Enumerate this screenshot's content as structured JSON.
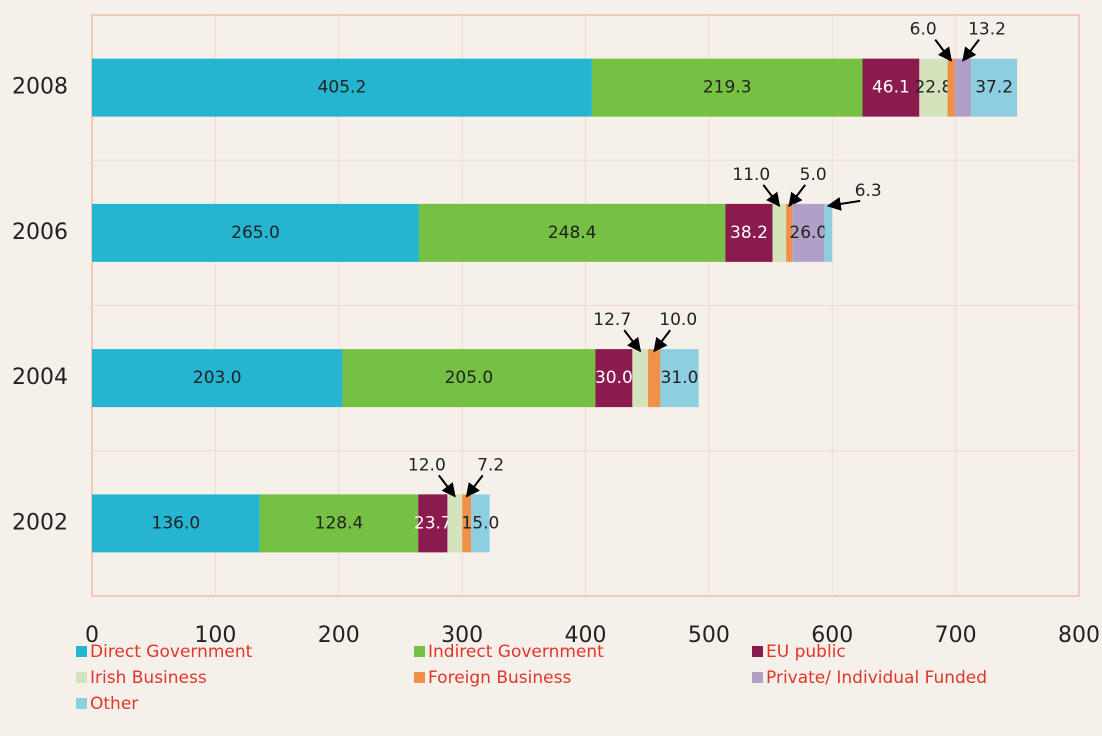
{
  "chart_data": {
    "type": "stacked_bar_horizontal",
    "categories": [
      "2008",
      "2006",
      "2004",
      "2002"
    ],
    "series": [
      {
        "name": "Direct Government",
        "color": "#26b5d0",
        "values": [
          405.2,
          265.0,
          203.0,
          136.0
        ],
        "value_labels": [
          "405.2",
          "265.0",
          "203.0",
          "136.0"
        ]
      },
      {
        "name": "Indirect Government",
        "color": "#76c043",
        "values": [
          219.3,
          248.4,
          205.0,
          128.4
        ],
        "value_labels": [
          "219.3",
          "248.4",
          "205.0",
          "128.4"
        ]
      },
      {
        "name": "EU public",
        "color": "#8b1a4f",
        "values": [
          46.1,
          38.2,
          30.0,
          23.7
        ],
        "value_labels": [
          "46.1",
          "38.2",
          "30.0",
          "23.7"
        ]
      },
      {
        "name": "Irish Business",
        "color": "#d5e3bd",
        "values": [
          22.8,
          11.0,
          12.7,
          12.0
        ],
        "value_labels": [
          "22.8",
          "11.0",
          "12.7",
          "12.0"
        ]
      },
      {
        "name": "Foreign Business",
        "color": "#f0914a",
        "values": [
          6.0,
          5.0,
          10.0,
          7.2
        ],
        "value_labels": [
          "6.0",
          "5.0",
          "10.0",
          "7.2"
        ]
      },
      {
        "name": "Private/ Individual Funded",
        "color": "#b0a0c8",
        "values": [
          13.2,
          26.0,
          null,
          null
        ],
        "value_labels": [
          "13.2",
          "26.0",
          null,
          null
        ]
      },
      {
        "name": "Other",
        "color": "#8dcfe0",
        "values": [
          37.2,
          6.3,
          31.0,
          15.0
        ],
        "value_labels": [
          "37.2",
          "6.3",
          "31.0",
          "15.0"
        ]
      }
    ],
    "xlim": [
      0,
      800
    ],
    "xticks": [
      0,
      100,
      200,
      300,
      400,
      500,
      600,
      700,
      800
    ],
    "grid": true
  }
}
